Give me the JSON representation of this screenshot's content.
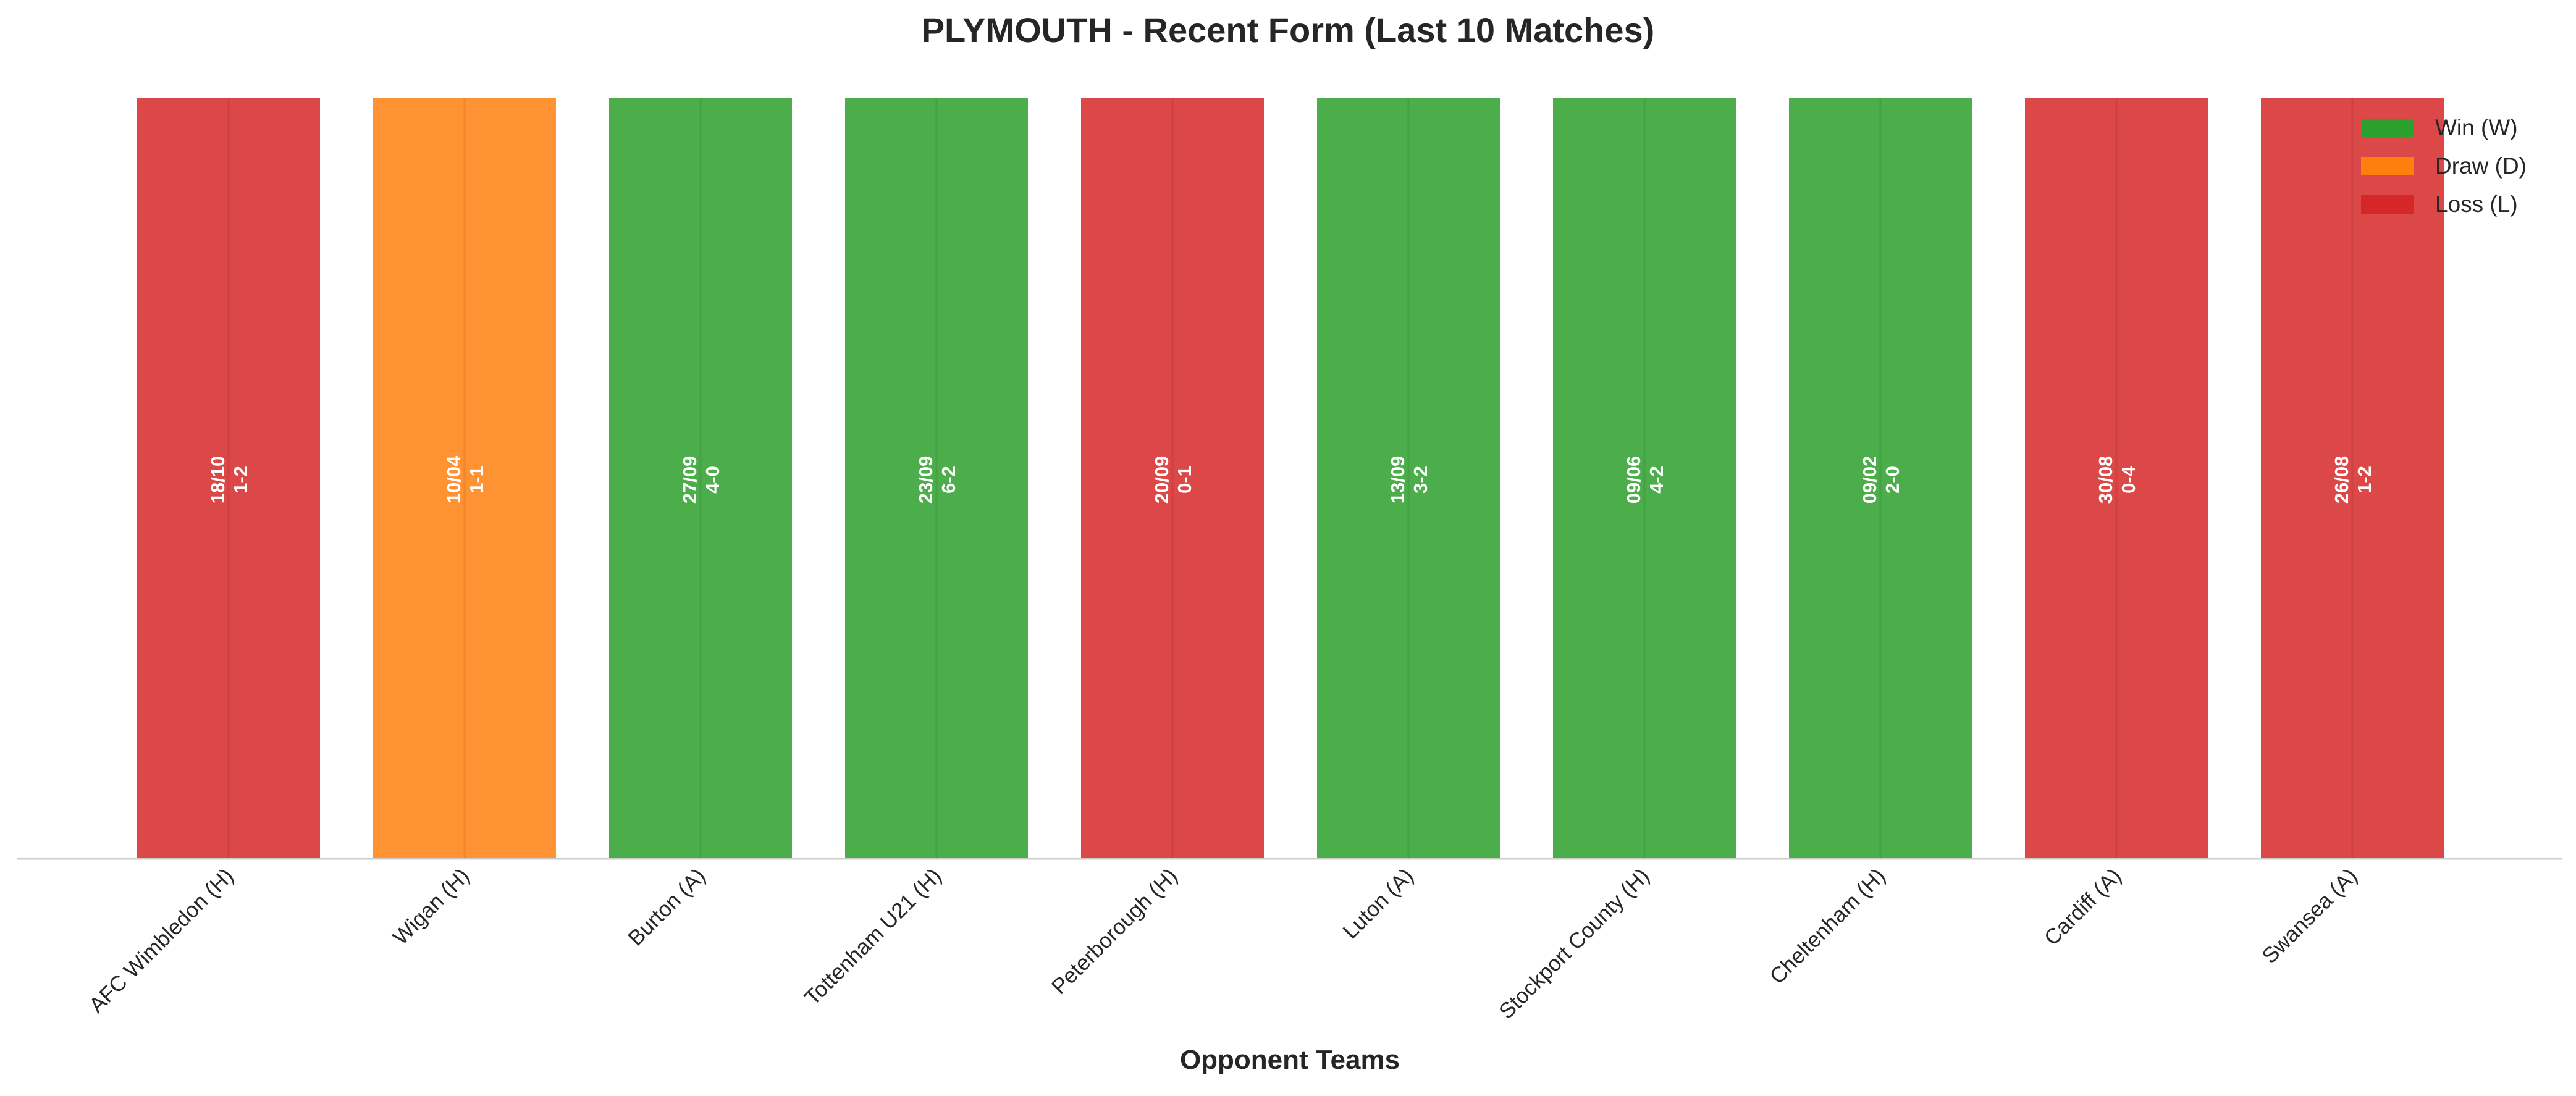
{
  "chart_data": {
    "type": "bar",
    "title": "PLYMOUTH - Recent Form (Last 10 Matches)",
    "xlabel": "Opponent Teams",
    "ylabel": "",
    "ylim": [
      0,
      1
    ],
    "grid": false,
    "legend_position": "top-right",
    "categories": [
      "AFC Wimbledon (H)",
      "Wigan (H)",
      "Burton (A)",
      "Tottenham U21 (H)",
      "Peterborough (H)",
      "Luton (A)",
      "Stockport County (H)",
      "Cheltenham (H)",
      "Cardiff (A)",
      "Swansea (A)"
    ],
    "values": [
      1,
      1,
      1,
      1,
      1,
      1,
      1,
      1,
      1,
      1
    ],
    "results": [
      "L",
      "D",
      "W",
      "W",
      "L",
      "W",
      "W",
      "W",
      "L",
      "L"
    ],
    "dates": [
      "18/10",
      "10/04",
      "27/09",
      "23/09",
      "20/09",
      "13/09",
      "09/06",
      "09/02",
      "30/08",
      "26/08"
    ],
    "scores": [
      "1-2",
      "1-1",
      "4-0",
      "6-2",
      "0-1",
      "3-2",
      "4-2",
      "2-0",
      "0-4",
      "1-2"
    ],
    "legend": [
      {
        "key": "W",
        "label": "Win (W)",
        "color": "#2ca02c"
      },
      {
        "key": "D",
        "label": "Draw (D)",
        "color": "#ff7f0e"
      },
      {
        "key": "L",
        "label": "Loss (L)",
        "color": "#d62728"
      }
    ]
  }
}
